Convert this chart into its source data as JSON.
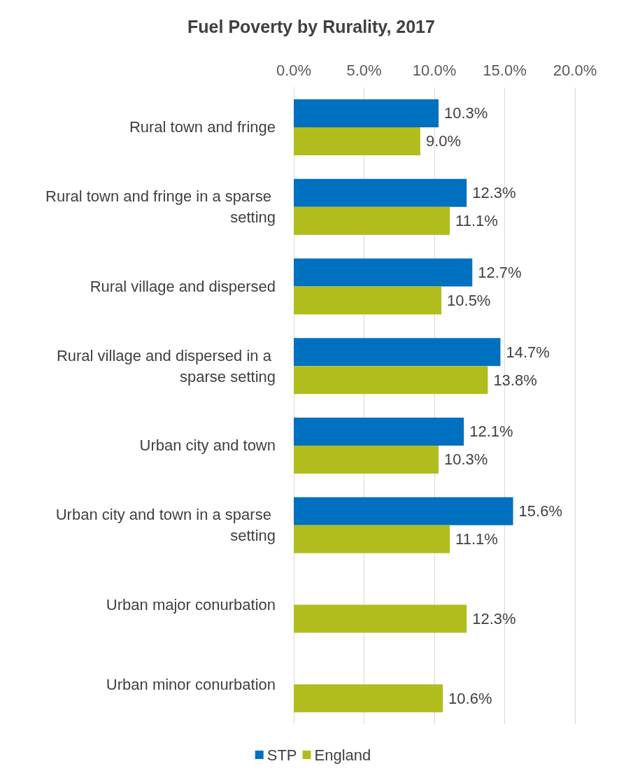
{
  "chart_data": {
    "type": "bar",
    "title": "Fuel Poverty by Rurality, 2017",
    "orientation": "horizontal",
    "categories": [
      "Rural town and fringe",
      "Rural town and fringe in a sparse setting",
      "Rural village and dispersed",
      "Rural village and dispersed in a sparse setting",
      "Urban city and town",
      "Urban city and town in a sparse setting",
      "Urban major conurbation",
      "Urban minor conurbation"
    ],
    "series": [
      {
        "name": "STP",
        "color": "#0070c0",
        "values": [
          10.3,
          12.3,
          12.7,
          14.7,
          12.1,
          15.6,
          null,
          null
        ],
        "value_labels": [
          "10.3%",
          "12.3%",
          "12.7%",
          "14.7%",
          "12.1%",
          "15.6%",
          null,
          null
        ]
      },
      {
        "name": "England",
        "color": "#b1bd1c",
        "values": [
          9.0,
          11.1,
          10.5,
          13.8,
          10.3,
          11.1,
          12.3,
          10.6
        ],
        "value_labels": [
          "9.0%",
          "11.1%",
          "10.5%",
          "13.8%",
          "10.3%",
          "11.1%",
          "12.3%",
          "10.6%"
        ]
      }
    ],
    "xlim": [
      0,
      20
    ],
    "xticks": [
      {
        "value": 0,
        "label": "0.0%"
      },
      {
        "value": 5,
        "label": "5.0%"
      },
      {
        "value": 10,
        "label": "10.0%"
      },
      {
        "value": 15,
        "label": "15.0%"
      },
      {
        "value": 20,
        "label": "20.0%"
      }
    ],
    "grid": "x",
    "legend": "bottom"
  }
}
